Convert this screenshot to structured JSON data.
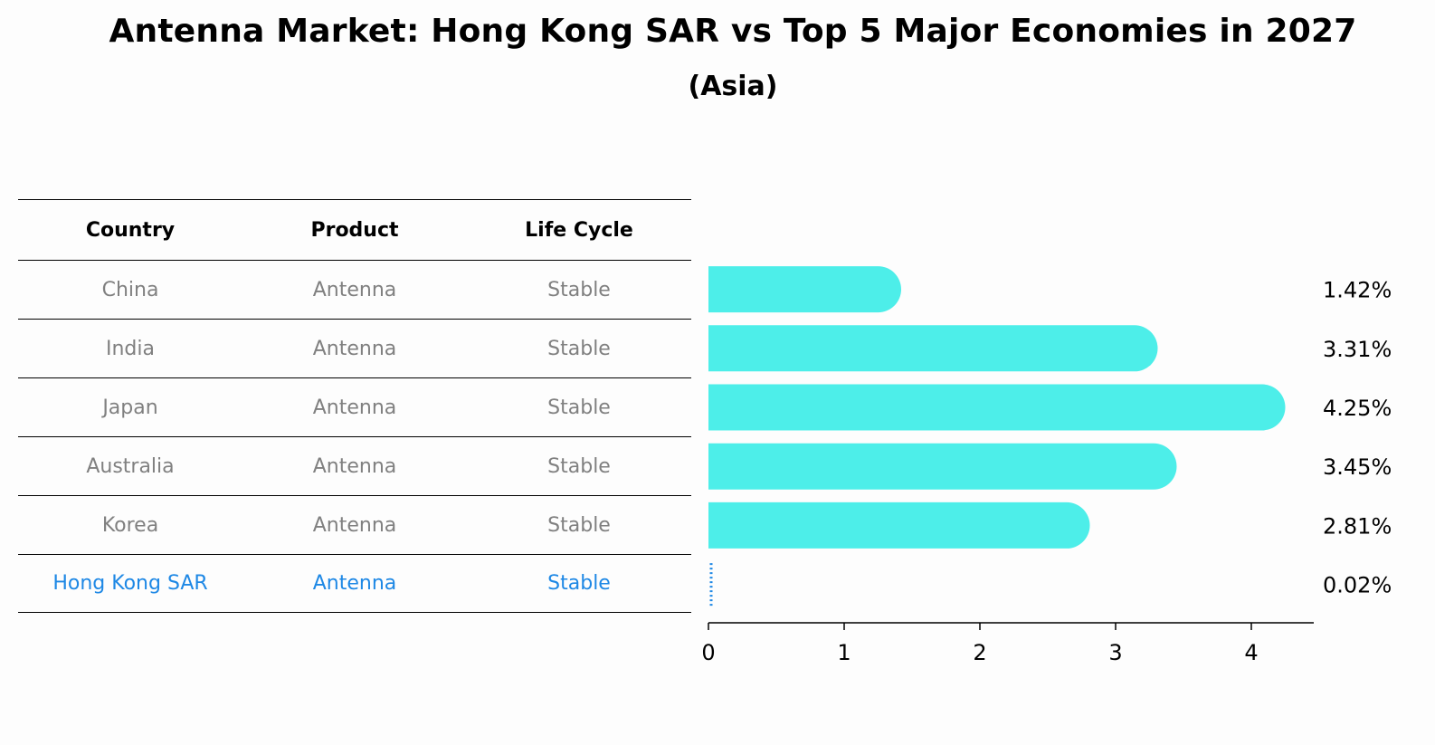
{
  "title": "Antenna Market: Hong Kong SAR vs Top 5 Major Economies in 2027",
  "subtitle": "(Asia)",
  "table": {
    "headers": [
      "Country",
      "Product",
      "Life Cycle"
    ],
    "rows": [
      {
        "country": "China",
        "product": "Antenna",
        "life_cycle": "Stable"
      },
      {
        "country": "India",
        "product": "Antenna",
        "life_cycle": "Stable"
      },
      {
        "country": "Japan",
        "product": "Antenna",
        "life_cycle": "Stable"
      },
      {
        "country": "Australia",
        "product": "Antenna",
        "life_cycle": "Stable"
      },
      {
        "country": "Korea",
        "product": "Antenna",
        "life_cycle": "Stable"
      },
      {
        "country": "Hong Kong SAR",
        "product": "Antenna",
        "life_cycle": "Stable"
      }
    ]
  },
  "colors": {
    "bar": "#4deee9",
    "highlight": "#1e88e5",
    "muted_text": "#808080"
  },
  "chart_data": {
    "type": "bar",
    "orientation": "horizontal",
    "categories": [
      "China",
      "India",
      "Japan",
      "Australia",
      "Korea",
      "Hong Kong SAR"
    ],
    "values": [
      1.42,
      3.31,
      4.25,
      3.45,
      2.81,
      0.02
    ],
    "value_labels": [
      "1.42%",
      "3.31%",
      "4.25%",
      "3.45%",
      "2.81%",
      "0.02%"
    ],
    "xlim": [
      0,
      4.46
    ],
    "xticks": [
      0,
      1,
      2,
      3,
      4
    ],
    "grid": false
  }
}
